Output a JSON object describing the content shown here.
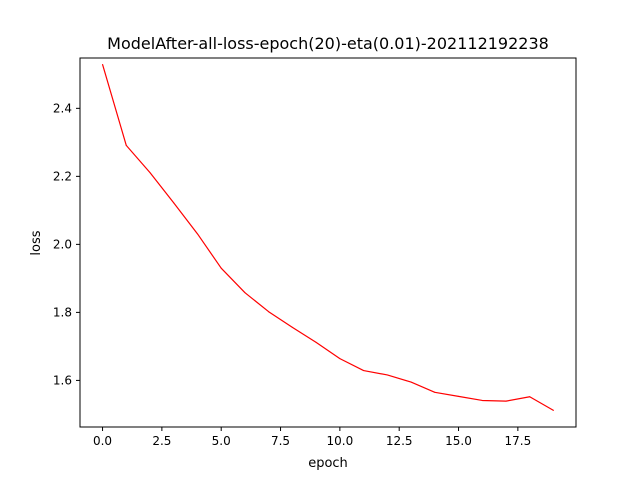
{
  "chart_data": {
    "type": "line",
    "title": "ModelAfter-all-loss-epoch(20)-eta(0.01)-202112192238",
    "xlabel": "epoch",
    "ylabel": "loss",
    "xlim": [
      -0.95,
      19.95
    ],
    "ylim": [
      1.463,
      2.548
    ],
    "xticks": [
      0.0,
      2.5,
      5.0,
      7.5,
      10.0,
      12.5,
      15.0,
      17.5
    ],
    "xtick_labels": [
      "0.0",
      "2.5",
      "5.0",
      "7.5",
      "10.0",
      "12.5",
      "15.0",
      "17.5"
    ],
    "yticks": [
      1.6,
      1.8,
      2.0,
      2.2,
      2.4
    ],
    "ytick_labels": [
      "1.6",
      "1.8",
      "2.0",
      "2.2",
      "2.4"
    ],
    "grid": false,
    "series": [
      {
        "color": "#ff0000",
        "x": [
          0,
          1,
          2,
          3,
          4,
          5,
          6,
          7,
          8,
          9,
          10,
          11,
          12,
          13,
          14,
          15,
          16,
          17,
          18,
          19
        ],
        "y": [
          2.529,
          2.291,
          2.211,
          2.122,
          2.031,
          1.93,
          1.858,
          1.802,
          1.756,
          1.712,
          1.664,
          1.629,
          1.616,
          1.595,
          1.565,
          1.553,
          1.541,
          1.539,
          1.552,
          1.512
        ]
      }
    ]
  }
}
